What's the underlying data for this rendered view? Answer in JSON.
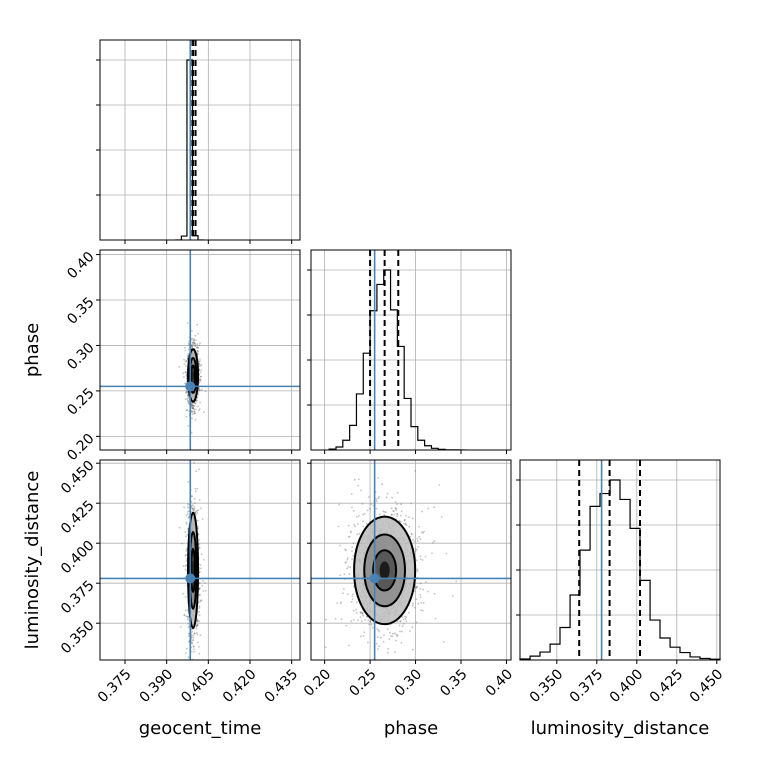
{
  "colors": {
    "truth": "#4682b4",
    "histogram": "#000000",
    "grid": "#b0b0b0",
    "scatter": "#555555"
  },
  "chart_data": {
    "type": "corner",
    "grid": true,
    "parameters": [
      {
        "name": "geocent_time",
        "label": "geocent_time",
        "range": [
          0.366,
          0.438
        ],
        "ticks": [
          0.375,
          0.39,
          0.405,
          0.42,
          0.435
        ],
        "tick_labels": [
          "0.375",
          "0.390",
          "0.405",
          "0.420",
          "0.435"
        ],
        "truth": 0.3985,
        "quantiles": [
          0.3986,
          0.3995,
          0.4004
        ],
        "hist_bins": [
          0.3933,
          0.3953,
          0.3973,
          0.3993,
          0.4013,
          0.4033
        ],
        "hist_counts": [
          10,
          840,
          38200,
          900,
          10
        ]
      },
      {
        "name": "phase",
        "label": "phase",
        "range": [
          0.185,
          0.405
        ],
        "ticks": [
          0.2,
          0.25,
          0.3,
          0.35,
          0.4
        ],
        "tick_labels": [
          "0.20",
          "0.25",
          "0.30",
          "0.35",
          "0.40"
        ],
        "truth": 0.255,
        "quantiles": [
          0.25,
          0.266,
          0.281
        ],
        "hist_bins": [
          0.205,
          0.2125,
          0.22,
          0.2275,
          0.235,
          0.2425,
          0.25,
          0.2575,
          0.265,
          0.2725,
          0.28,
          0.2875,
          0.295,
          0.3025,
          0.31,
          0.3175,
          0.325,
          0.3325,
          0.34,
          0.3475,
          0.355
        ],
        "hist_counts": [
          40,
          140,
          460,
          1160,
          2640,
          4560,
          6560,
          7800,
          8480,
          6600,
          4880,
          2430,
          1100,
          460,
          200,
          80,
          30,
          10,
          5,
          2
        ]
      },
      {
        "name": "luminosity_distance",
        "label": "luminosity_distance",
        "range": [
          0.327,
          0.452
        ],
        "ticks": [
          0.35,
          0.375,
          0.4,
          0.425,
          0.45
        ],
        "tick_labels": [
          "0.350",
          "0.375",
          "0.400",
          "0.425",
          "0.450"
        ],
        "truth": 0.378,
        "quantiles": [
          0.364,
          0.383,
          0.402
        ],
        "hist_bins": [
          0.327,
          0.3333,
          0.3395,
          0.3458,
          0.352,
          0.3583,
          0.3645,
          0.3708,
          0.377,
          0.3833,
          0.3895,
          0.3958,
          0.402,
          0.4083,
          0.4145,
          0.4208,
          0.427,
          0.4333,
          0.4395,
          0.4458,
          0.452
        ],
        "hist_counts": [
          40,
          150,
          310,
          620,
          1270,
          2540,
          4290,
          6000,
          6500,
          7030,
          6270,
          5140,
          3110,
          1560,
          860,
          500,
          290,
          120,
          60,
          30
        ]
      }
    ],
    "density_contours": [
      {
        "x": "geocent_time",
        "y": "phase",
        "center": [
          0.3995,
          0.267
        ],
        "sigma": [
          0.00075,
          0.012
        ]
      },
      {
        "x": "geocent_time",
        "y": "luminosity_distance",
        "center": [
          0.3995,
          0.383
        ],
        "sigma": [
          0.00075,
          0.015
        ]
      },
      {
        "x": "phase",
        "y": "luminosity_distance",
        "center": [
          0.266,
          0.383
        ],
        "sigma": [
          0.014,
          0.014
        ]
      }
    ]
  }
}
